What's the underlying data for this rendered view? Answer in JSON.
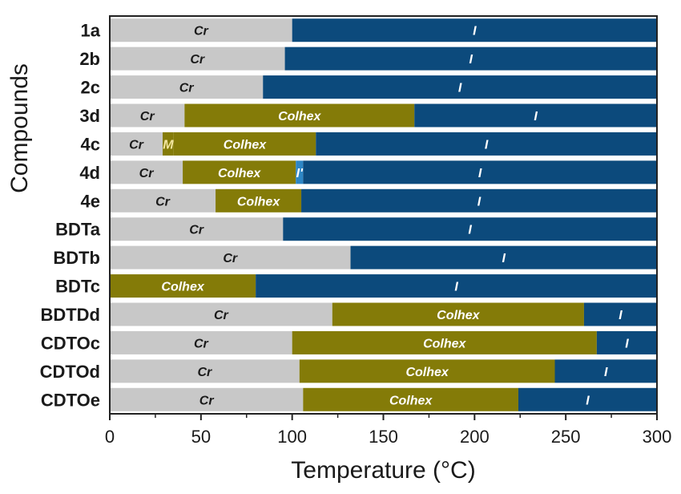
{
  "chart_data": {
    "type": "bar",
    "orientation": "horizontal-stacked",
    "xlabel": "Temperature (°C)",
    "ylabel": "Compounds",
    "xlim": [
      0,
      300
    ],
    "xticks": [
      0,
      50,
      100,
      150,
      200,
      250,
      300
    ],
    "grid": false,
    "legend": "none",
    "colors": {
      "Cr": "#c8c8c8",
      "Colhex": "#847b08",
      "I": "#0c4a7c",
      "M": "#847b08",
      "I'": "#2d86c5"
    },
    "label_colors": {
      "Cr": "#1a1a1a",
      "Colhex": "#ffffff",
      "I": "#ffffff",
      "M": "#f3e6a0",
      "I'": "#ffffff"
    },
    "categories": [
      "1a",
      "2b",
      "2c",
      "3d",
      "4c",
      "4d",
      "4e",
      "BDTa",
      "BDTb",
      "BDTc",
      "BDTDd",
      "CDTOc",
      "CDTOd",
      "CDTOe"
    ],
    "rows": [
      {
        "compound": "1a",
        "segments": [
          {
            "phase": "Cr",
            "label": "Cr",
            "start": 0,
            "end": 100
          },
          {
            "phase": "I",
            "label": "I",
            "start": 100,
            "end": 300
          }
        ]
      },
      {
        "compound": "2b",
        "segments": [
          {
            "phase": "Cr",
            "label": "Cr",
            "start": 0,
            "end": 96
          },
          {
            "phase": "I",
            "label": "I",
            "start": 96,
            "end": 300
          }
        ]
      },
      {
        "compound": "2c",
        "segments": [
          {
            "phase": "Cr",
            "label": "Cr",
            "start": 0,
            "end": 84
          },
          {
            "phase": "I",
            "label": "I",
            "start": 84,
            "end": 300
          }
        ]
      },
      {
        "compound": "3d",
        "segments": [
          {
            "phase": "Cr",
            "label": "Cr",
            "start": 0,
            "end": 41
          },
          {
            "phase": "Colhex",
            "label": "Colhex",
            "start": 41,
            "end": 167
          },
          {
            "phase": "I",
            "label": "I",
            "start": 167,
            "end": 300
          }
        ]
      },
      {
        "compound": "4c",
        "segments": [
          {
            "phase": "Cr",
            "label": "Cr",
            "start": 0,
            "end": 29
          },
          {
            "phase": "M",
            "label": "M",
            "start": 29,
            "end": 35
          },
          {
            "phase": "Colhex",
            "label": "Colhex",
            "start": 35,
            "end": 113
          },
          {
            "phase": "I",
            "label": "I",
            "start": 113,
            "end": 300
          }
        ]
      },
      {
        "compound": "4d",
        "segments": [
          {
            "phase": "Cr",
            "label": "Cr",
            "start": 0,
            "end": 40
          },
          {
            "phase": "Colhex",
            "label": "Colhex",
            "start": 40,
            "end": 102
          },
          {
            "phase": "I'",
            "label": "I'",
            "start": 102,
            "end": 106
          },
          {
            "phase": "I",
            "label": "I",
            "start": 106,
            "end": 300
          }
        ]
      },
      {
        "compound": "4e",
        "segments": [
          {
            "phase": "Cr",
            "label": "Cr",
            "start": 0,
            "end": 58
          },
          {
            "phase": "Colhex",
            "label": "Colhex",
            "start": 58,
            "end": 105
          },
          {
            "phase": "I",
            "label": "I",
            "start": 105,
            "end": 300
          }
        ]
      },
      {
        "compound": "BDTa",
        "segments": [
          {
            "phase": "Cr",
            "label": "Cr",
            "start": 0,
            "end": 95
          },
          {
            "phase": "I",
            "label": "I",
            "start": 95,
            "end": 300
          }
        ]
      },
      {
        "compound": "BDTb",
        "segments": [
          {
            "phase": "Cr",
            "label": "Cr",
            "start": 0,
            "end": 132
          },
          {
            "phase": "I",
            "label": "I",
            "start": 132,
            "end": 300
          }
        ]
      },
      {
        "compound": "BDTc",
        "segments": [
          {
            "phase": "Colhex",
            "label": "Colhex",
            "start": 0,
            "end": 80
          },
          {
            "phase": "I",
            "label": "I",
            "start": 80,
            "end": 300
          }
        ]
      },
      {
        "compound": "BDTDd",
        "segments": [
          {
            "phase": "Cr",
            "label": "Cr",
            "start": 0,
            "end": 122
          },
          {
            "phase": "Colhex",
            "label": "Colhex",
            "start": 122,
            "end": 260
          },
          {
            "phase": "I",
            "label": "I",
            "start": 260,
            "end": 300
          }
        ]
      },
      {
        "compound": "CDTOc",
        "segments": [
          {
            "phase": "Cr",
            "label": "Cr",
            "start": 0,
            "end": 100
          },
          {
            "phase": "Colhex",
            "label": "Colhex",
            "start": 100,
            "end": 267
          },
          {
            "phase": "I",
            "label": "I",
            "start": 267,
            "end": 300
          }
        ]
      },
      {
        "compound": "CDTOd",
        "segments": [
          {
            "phase": "Cr",
            "label": "Cr",
            "start": 0,
            "end": 104
          },
          {
            "phase": "Colhex",
            "label": "Colhex",
            "start": 104,
            "end": 244
          },
          {
            "phase": "I",
            "label": "I",
            "start": 244,
            "end": 300
          }
        ]
      },
      {
        "compound": "CDTOe",
        "segments": [
          {
            "phase": "Cr",
            "label": "Cr",
            "start": 0,
            "end": 106
          },
          {
            "phase": "Colhex",
            "label": "Colhex",
            "start": 106,
            "end": 224
          },
          {
            "phase": "I",
            "label": "I",
            "start": 224,
            "end": 300
          }
        ]
      }
    ]
  }
}
